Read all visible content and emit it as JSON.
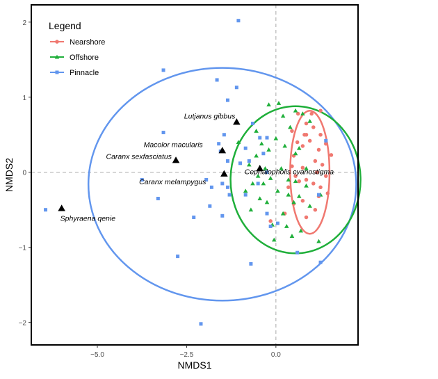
{
  "chart_data": {
    "type": "scatter",
    "xlabel": "NMDS1",
    "ylabel": "NMDS2",
    "xlim": [
      -6.85,
      2.3
    ],
    "ylim": [
      -2.3,
      2.23
    ],
    "xticks": [
      -5.0,
      -2.5,
      0.0
    ],
    "xtick_labels": [
      "−5.0",
      "−2.5",
      "0.0"
    ],
    "yticks": [
      -2,
      -1,
      0,
      1,
      2
    ],
    "ytick_labels": [
      "−2",
      "−1",
      "0",
      "1",
      "2"
    ],
    "reference_lines": {
      "x": 0,
      "y": 0,
      "style": "dashed"
    },
    "grid": false,
    "legend": {
      "title": "Legend",
      "placement": "top-left",
      "entries": [
        {
          "label": "Nearshore",
          "color": "#F07870",
          "marker": "circle"
        },
        {
          "label": "Offshore",
          "color": "#1FAF3A",
          "marker": "triangle"
        },
        {
          "label": "Pinnacle",
          "color": "#6296EE",
          "marker": "square"
        }
      ]
    },
    "series": [
      {
        "name": "Nearshore",
        "color": "#F07870",
        "marker": "circle",
        "points": [
          [
            0.62,
            0.78
          ],
          [
            1.0,
            0.78
          ],
          [
            1.25,
            0.82
          ],
          [
            0.85,
            0.65
          ],
          [
            1.05,
            0.6
          ],
          [
            0.45,
            0.55
          ],
          [
            1.4,
            0.38
          ],
          [
            0.6,
            0.4
          ],
          [
            0.75,
            0.35
          ],
          [
            0.95,
            0.42
          ],
          [
            1.25,
            0.5
          ],
          [
            0.8,
            0.5
          ],
          [
            0.85,
            0.5
          ],
          [
            1.2,
            0.3
          ],
          [
            1.55,
            0.23
          ],
          [
            0.5,
            0.22
          ],
          [
            1.1,
            0.15
          ],
          [
            1.3,
            0.1
          ],
          [
            0.45,
            0.08
          ],
          [
            0.75,
            0.06
          ],
          [
            1.15,
            0.0
          ],
          [
            0.55,
            -0.05
          ],
          [
            1.4,
            -0.05
          ],
          [
            0.65,
            -0.12
          ],
          [
            1.05,
            -0.15
          ],
          [
            0.85,
            -0.1
          ],
          [
            1.25,
            -0.2
          ],
          [
            0.35,
            -0.2
          ],
          [
            1.45,
            -0.28
          ],
          [
            1.2,
            -0.32
          ],
          [
            0.75,
            -0.38
          ],
          [
            0.5,
            -0.42
          ],
          [
            1.1,
            -0.5
          ],
          [
            0.25,
            -0.55
          ],
          [
            0.85,
            -0.6
          ],
          [
            -0.15,
            -0.65
          ]
        ]
      },
      {
        "name": "Offshore",
        "color": "#1FAF3A",
        "marker": "triangle",
        "points": [
          [
            0.08,
            0.92
          ],
          [
            -0.2,
            0.9
          ],
          [
            0.55,
            0.82
          ],
          [
            0.75,
            0.78
          ],
          [
            0.2,
            0.75
          ],
          [
            0.95,
            0.68
          ],
          [
            0.4,
            0.6
          ],
          [
            -0.55,
            0.55
          ],
          [
            0.0,
            0.45
          ],
          [
            -0.4,
            0.38
          ],
          [
            0.25,
            0.35
          ],
          [
            0.65,
            0.32
          ],
          [
            -0.2,
            0.3
          ],
          [
            -1.05,
            0.4
          ],
          [
            -0.55,
            0.22
          ],
          [
            0.55,
            0.25
          ],
          [
            -0.75,
            0.1
          ],
          [
            -0.3,
            0.05
          ],
          [
            0.15,
            0.05
          ],
          [
            0.85,
            0.05
          ],
          [
            -0.5,
            -0.05
          ],
          [
            -0.15,
            -0.08
          ],
          [
            0.35,
            -0.1
          ],
          [
            -0.65,
            -0.15
          ],
          [
            0.55,
            -0.12
          ],
          [
            -0.35,
            -0.15
          ],
          [
            0.85,
            -0.18
          ],
          [
            -0.85,
            -0.25
          ],
          [
            0.05,
            -0.25
          ],
          [
            0.35,
            -0.3
          ],
          [
            0.65,
            -0.32
          ],
          [
            1.25,
            -0.3
          ],
          [
            -0.45,
            -0.35
          ],
          [
            -0.25,
            -0.4
          ],
          [
            0.5,
            -0.4
          ],
          [
            -0.7,
            -0.5
          ],
          [
            0.95,
            -0.45
          ],
          [
            0.2,
            -0.55
          ],
          [
            -0.1,
            -0.7
          ],
          [
            0.3,
            -0.72
          ],
          [
            0.7,
            -0.78
          ],
          [
            -0.05,
            -0.9
          ],
          [
            0.45,
            -0.85
          ],
          [
            1.2,
            -0.92
          ]
        ]
      },
      {
        "name": "Pinnacle",
        "color": "#6296EE",
        "marker": "square",
        "points": [
          [
            -1.05,
            2.02
          ],
          [
            -3.15,
            1.36
          ],
          [
            -1.65,
            1.23
          ],
          [
            -1.1,
            1.13
          ],
          [
            -1.35,
            0.96
          ],
          [
            -3.15,
            0.53
          ],
          [
            -1.45,
            0.5
          ],
          [
            -0.65,
            0.65
          ],
          [
            -1.6,
            0.38
          ],
          [
            -0.25,
            0.46
          ],
          [
            -0.85,
            0.32
          ],
          [
            -0.45,
            0.46
          ],
          [
            -1.55,
            0.28
          ],
          [
            -1.35,
            0.15
          ],
          [
            -0.35,
            0.25
          ],
          [
            -1.0,
            0.12
          ],
          [
            -0.75,
            0.15
          ],
          [
            -0.25,
            0.0
          ],
          [
            -0.5,
            -0.15
          ],
          [
            -1.95,
            -0.1
          ],
          [
            -1.5,
            -0.15
          ],
          [
            -1.35,
            -0.2
          ],
          [
            -1.8,
            -0.2
          ],
          [
            -1.3,
            -0.3
          ],
          [
            -0.85,
            -0.3
          ],
          [
            -2.3,
            -0.6
          ],
          [
            -1.85,
            -0.45
          ],
          [
            -1.5,
            -0.58
          ],
          [
            -3.75,
            -0.1
          ],
          [
            -3.3,
            -0.35
          ],
          [
            -2.75,
            -1.12
          ],
          [
            -6.45,
            -0.5
          ],
          [
            -0.25,
            -0.55
          ],
          [
            0.05,
            -0.68
          ],
          [
            -0.15,
            -0.72
          ],
          [
            1.2,
            -0.3
          ],
          [
            1.4,
            0.42
          ],
          [
            1.25,
            -1.2
          ],
          [
            0.6,
            -1.07
          ],
          [
            -0.7,
            -1.22
          ],
          [
            -2.1,
            -2.02
          ]
        ]
      },
      {
        "name": "species",
        "color": "#000000",
        "marker": "triangle",
        "points": [
          [
            -6.0,
            -0.48
          ],
          [
            -2.8,
            0.16
          ],
          [
            -1.5,
            0.29
          ],
          [
            -1.45,
            -0.02
          ],
          [
            -1.1,
            0.67
          ],
          [
            -0.45,
            0.05
          ]
        ]
      }
    ],
    "species_labels": [
      {
        "label": "Sphyraena qenie",
        "x": -6.0,
        "y": -0.48
      },
      {
        "label": "Caranx sexfasciatus",
        "x": -2.8,
        "y": 0.16
      },
      {
        "label": "Macolor macularis",
        "x": -1.5,
        "y": 0.29
      },
      {
        "label": "Caranx melampygus",
        "x": -1.45,
        "y": -0.02
      },
      {
        "label": "Lutjanus gibbus",
        "x": -1.1,
        "y": 0.67
      },
      {
        "label": "Cephalopholis cyanostigma",
        "x": -0.45,
        "y": 0.05
      }
    ],
    "ellipses": [
      {
        "name": "Pinnacle",
        "color": "#6296EE",
        "cx": -1.5,
        "cy": -0.16,
        "rx": 3.75,
        "ry": 1.55
      },
      {
        "name": "Offshore",
        "color": "#1FAF3A",
        "cx": 0.55,
        "cy": -0.1,
        "rx": 1.82,
        "ry": 0.98
      },
      {
        "name": "Nearshore",
        "color": "#F07870",
        "cx": 0.95,
        "cy": 0.0,
        "rx": 0.55,
        "ry": 0.82
      }
    ]
  }
}
